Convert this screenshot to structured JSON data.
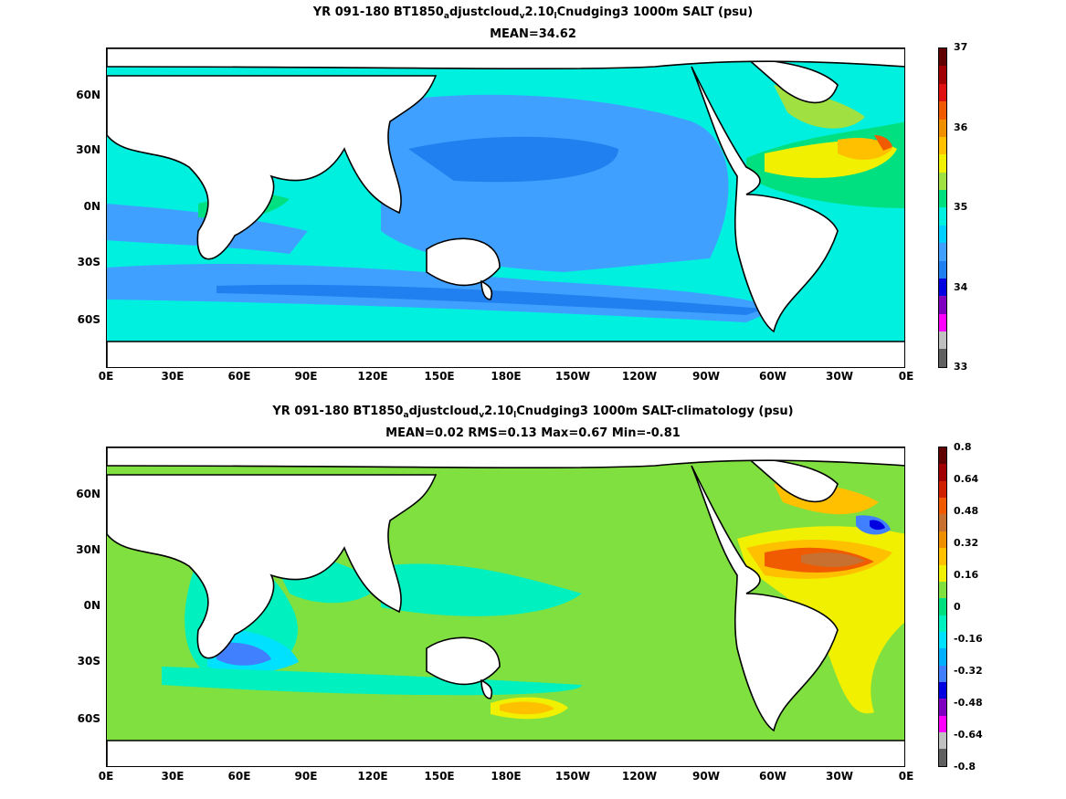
{
  "panels": [
    {
      "title_a": "YR 091-180 BT1850",
      "title_sub1": "a",
      "title_b": "djustcloud",
      "title_sub2": "v",
      "title_c": "2.10",
      "title_sub3": "l",
      "title_d": "Cnudging3 1000m SALT (psu)",
      "stats": "MEAN=34.62",
      "colorbar": {
        "colors": [
          "#600000",
          "#a00000",
          "#e01010",
          "#f05a00",
          "#f09000",
          "#ffc000",
          "#f0f000",
          "#a0e040",
          "#00e080",
          "#00f0e0",
          "#00d0ff",
          "#40a0ff",
          "#2080f0",
          "#0000e0",
          "#8000c0",
          "#ff00ff",
          "#c0c0c0",
          "#606060"
        ],
        "labels": [
          "37",
          "36",
          "35",
          "34",
          "33"
        ]
      }
    },
    {
      "title_a": "YR 091-180 BT1850",
      "title_sub1": "a",
      "title_b": "djustcloud",
      "title_sub2": "v",
      "title_c": "2.10",
      "title_sub3": "l",
      "title_d": "Cnudging3 1000m SALT-climatology (psu)",
      "stats": "MEAN=0.02   RMS=0.13   Max=0.67   Min=-0.81",
      "colorbar": {
        "colors": [
          "#600000",
          "#a00000",
          "#d02000",
          "#f05a00",
          "#c87030",
          "#f09000",
          "#ffc000",
          "#f0f000",
          "#80e040",
          "#00e080",
          "#00f0c0",
          "#00e0ff",
          "#00b0ff",
          "#4080ff",
          "#0000e0",
          "#8000c0",
          "#ff00ff",
          "#c0c0c0",
          "#606060"
        ],
        "labels": [
          "0.8",
          "0.64",
          "0.48",
          "0.32",
          "0.16",
          "0",
          "-0.16",
          "-0.32",
          "-0.48",
          "-0.64",
          "-0.8"
        ]
      }
    }
  ],
  "lat_labels": [
    "60N",
    "30N",
    "0N",
    "30S",
    "60S"
  ],
  "lon_labels": [
    "0E",
    "30E",
    "60E",
    "90E",
    "120E",
    "150E",
    "180E",
    "150W",
    "120W",
    "90W",
    "60W",
    "30W",
    "0E"
  ]
}
